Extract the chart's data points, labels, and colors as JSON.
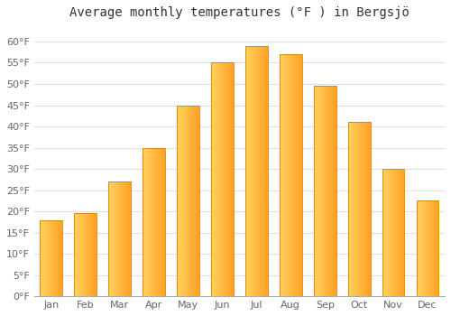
{
  "title": "Average monthly temperatures (°F ) in Bergsjö",
  "months": [
    "Jan",
    "Feb",
    "Mar",
    "Apr",
    "May",
    "Jun",
    "Jul",
    "Aug",
    "Sep",
    "Oct",
    "Nov",
    "Dec"
  ],
  "values": [
    18,
    19.5,
    27,
    35,
    45,
    55,
    59,
    57,
    49.5,
    41,
    30,
    22.5
  ],
  "ylim": [
    0,
    63
  ],
  "yticks": [
    0,
    5,
    10,
    15,
    20,
    25,
    30,
    35,
    40,
    45,
    50,
    55,
    60
  ],
  "ytick_labels": [
    "0°F",
    "5°F",
    "10°F",
    "15°F",
    "20°F",
    "25°F",
    "30°F",
    "35°F",
    "40°F",
    "45°F",
    "50°F",
    "55°F",
    "60°F"
  ],
  "bar_color_left": "#FFD060",
  "bar_color_right": "#FFA020",
  "bar_edge_color": "#CC8800",
  "background_color": "#ffffff",
  "plot_bg_color": "#ffffff",
  "title_fontsize": 10,
  "tick_fontsize": 8,
  "grid_color": "#e0e0e0",
  "bar_width": 0.65
}
